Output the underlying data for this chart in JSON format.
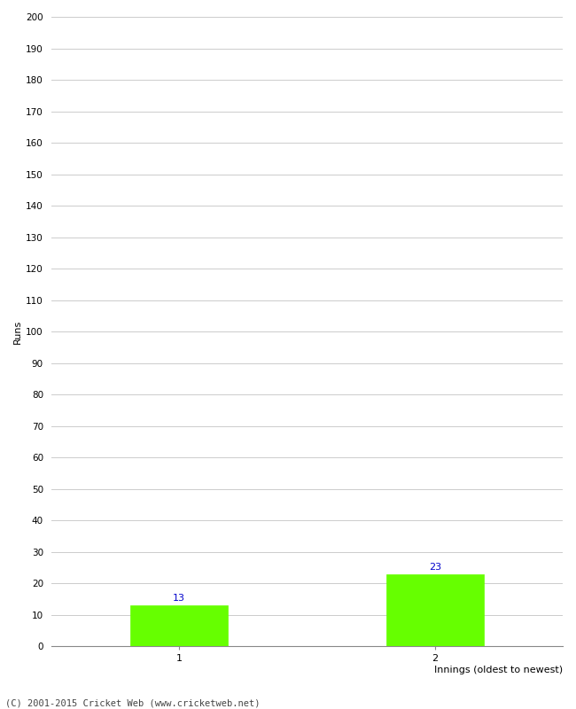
{
  "categories": [
    "1",
    "2"
  ],
  "values": [
    13,
    23
  ],
  "bar_color": "#66ff00",
  "bar_edge_color": "#66ff00",
  "ylabel": "Runs",
  "xlabel": "Innings (oldest to newest)",
  "ylim": [
    0,
    200
  ],
  "yticks": [
    0,
    10,
    20,
    30,
    40,
    50,
    60,
    70,
    80,
    90,
    100,
    110,
    120,
    130,
    140,
    150,
    160,
    170,
    180,
    190,
    200
  ],
  "annotation_color": "#0000cc",
  "annotation_fontsize": 8,
  "background_color": "#ffffff",
  "grid_color": "#cccccc",
  "footer": "(C) 2001-2015 Cricket Web (www.cricketweb.net)",
  "bar_width": 0.38,
  "x_positions": [
    1,
    2
  ],
  "xlim": [
    0.5,
    2.5
  ]
}
